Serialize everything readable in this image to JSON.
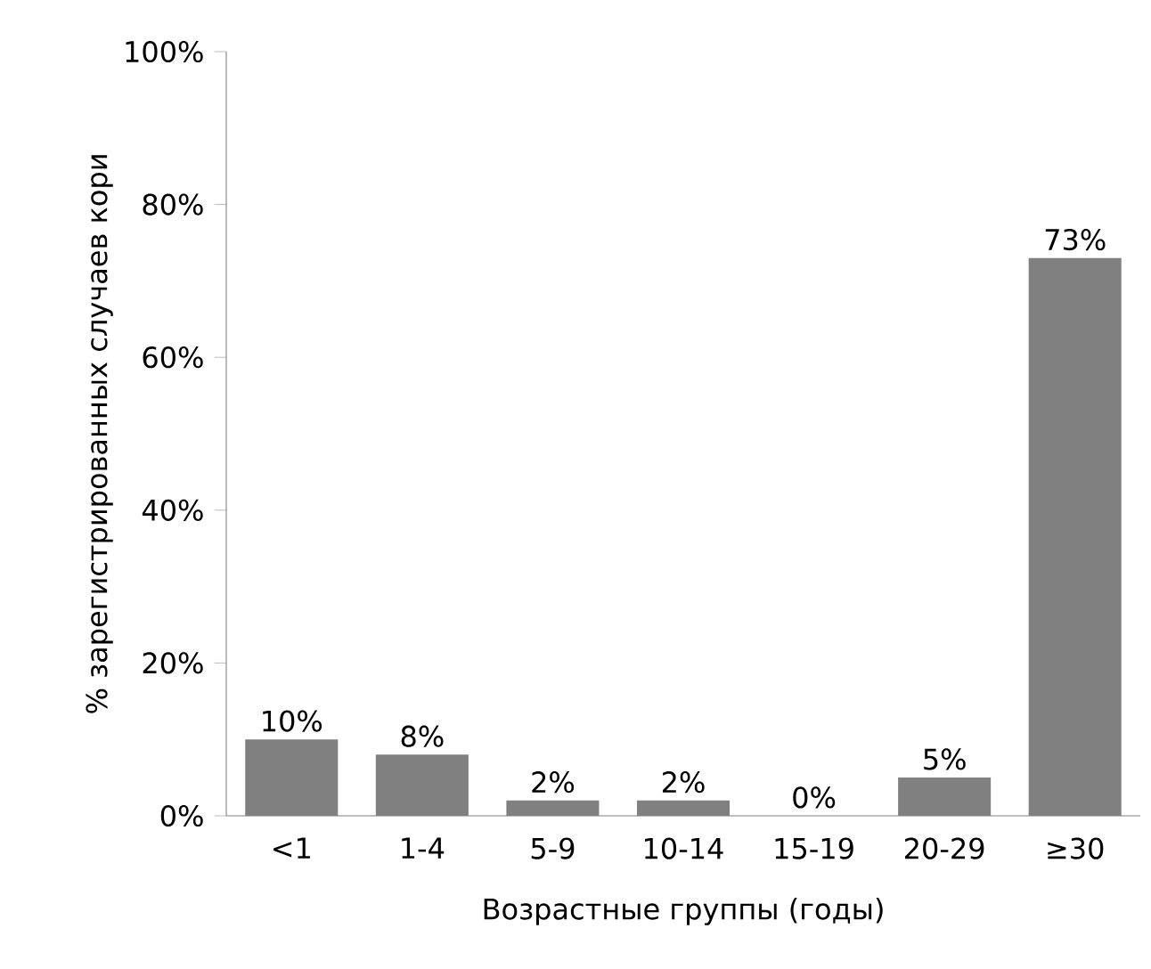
{
  "chart_data": {
    "type": "bar",
    "xlabel": "Возрастные группы (годы)",
    "ylabel": "% зарегистрированных случаев кори",
    "categories": [
      "<1",
      "1-4",
      "5-9",
      "10-14",
      "15-19",
      "20-29",
      "≥30"
    ],
    "values": [
      10,
      8,
      2,
      2,
      0,
      5,
      73
    ],
    "value_labels": [
      "10%",
      "8%",
      "2%",
      "2%",
      "0%",
      "5%",
      "73%"
    ],
    "color": "#808080",
    "ylim": [
      0,
      100
    ],
    "yticks": [
      {
        "value": 0,
        "label": "0%"
      },
      {
        "value": 20,
        "label": "20%"
      },
      {
        "value": 40,
        "label": "40%"
      },
      {
        "value": 60,
        "label": "60%"
      },
      {
        "value": 80,
        "label": "80%"
      },
      {
        "value": 100,
        "label": "100%"
      }
    ],
    "grid": false
  }
}
